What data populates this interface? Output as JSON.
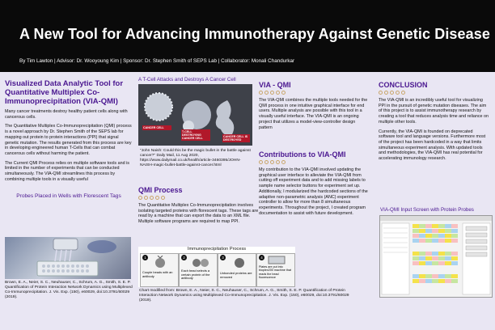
{
  "poster": {
    "title": "A New Tool for Advancing Immunotherapy Against Genetic Disease",
    "byline": "By Tim Lawton  |  Advisor: Dr. Wooyoung Kim  |  Sponsor: Dr. Stephen Smith of SEPS Lab  |  Collaborator: Monali Chandurkar"
  },
  "col1": {
    "heading": "Visualized Data Analytic Tool for Quantitative Multiplex Co-Immunoprecipitation (VIA-QMI)",
    "p1": "Many cancer treatments destroy healthy patient cells along with cancerous cells.",
    "p2": "The Quantitative Multiplex Co-Immunoprecipitation (QMI) process is a novel approach by Dr. Stephen Smith of the SEPS lab for mapping out protein to protein interactions (PPI) that signal genetic mutation. The results generated from this process are key in developing engineered human T-Cells that can combat cancerous cells without harming the patient.",
    "p3": "The Current QMI Process relies on multiple software tools and is limited in the number of experiments that can be conducted simultaneously. The VIA-QMI streamlines this process by combining multiple tools in a visually useful",
    "image_heading": "Probes Placed in Wells with Florescent Tags",
    "citation": "Brown, E. A., Neier, S. C., Neuhauser, C., Schrum, A. G., Smith, S. E. P. Quantification of Protein Interaction Network Dynamics using Multiplexed Co-Immunoprecipitation. J. Vis. Exp. (150), e60029, doi:10.3791/60029 (2019)."
  },
  "col2": {
    "image_heading": "A T-Cell Attacks and Destroys A Cancer Cell",
    "cell_labels": [
      "CANCER CELL",
      "T-CELL DESTROYING CANCER CELL",
      "CANCER CELL IS DESTROYED"
    ],
    "image_caption": "\"John Naish: Could this be the magic bullet in the battle against cancer?\" Daily Mail, 11 Aug 2020, https://www.dailymail.co.uk/health/article-3460395/JOHN-NAISH-magic-bullet-battle-against-cancer.html",
    "heading": "QMI Process",
    "body": "The Quantitative Multiplex Co-Immunoprecipitation involves isolating targeted proteins with florescent tags. These tags are read by a machine that can export the data to an XML file. Multiple software programs are required to map PPI.",
    "diagram_title": "Immunoprecipitation Process",
    "diagram_steps": [
      "Couple beads with an antibody",
      "Each bead selects a certain protein of the antibody",
      "Unbonded proteins are removed",
      "Plates are put into bioplex200 machine that reads the bead fluorescence"
    ],
    "diagram_nums": [
      "1",
      "2",
      "3",
      "4"
    ],
    "chart_caption": "Chart modified from: Brown, E. A., Neier, S. C., Neuhauser, C., Schrum, A. G., Smith, S. E. P. Quantification of Protein Interaction Network Dynamics using Multiplexed Co-Immunoprecipitation. J. Vis. Exp. (150), e60029, doi:10.3791/60029 (2019)."
  },
  "col3": {
    "heading1": "VIA - QMI",
    "body1": "The VIA-QMI combines the multiple tools needed for the QMI process in one intuitive graphical interface for end users. Multiple analysis are possible with this tool in a visually useful interface. The VIA-QMI is an ongoing project that utilizes a model-view-controller design pattern",
    "heading2": "Contributions to VIA-QMI",
    "body2": "My contribution to the VIA-QMI involved updating the graphical user interface to alleviate the VIA-QMI from cutting off experiment data and to add missing labels to sample name selector buttons for experiment set up. Additionally, I modularized the hardcoded sections of the adaptive non-parametric analysis (ANC) experiment controller to allow for more than 8 simultaneous experiments. Throughout the project, I created program documentation to assist with future development."
  },
  "col4": {
    "heading": "CONCLUSION",
    "p1": "The VIA-QMI is an incredibly useful tool for visualizing PPI in the pursuit of genetic mutation diseases. The aim of this project is to assist immunotherapy research by creating a tool that reduces analysis time and reliance on multiple other tools.",
    "p2": "Currently, the VIA-QMI is founded on deprecated software tool and language versions. Furthermore most of the project has been hardcoded in a way that limits simultaneous experiment analysis. With updated tools and methodologies, the VIA-QMI has real potential for accelerating immunology research.",
    "image_heading": "VIA-QMI Input Screen with Protein Probes"
  },
  "colors": {
    "header_bg": "#0a0a0a",
    "page_bg": "#e9e6f3",
    "heading": "#4a1790",
    "accent": "#c9a66b"
  }
}
